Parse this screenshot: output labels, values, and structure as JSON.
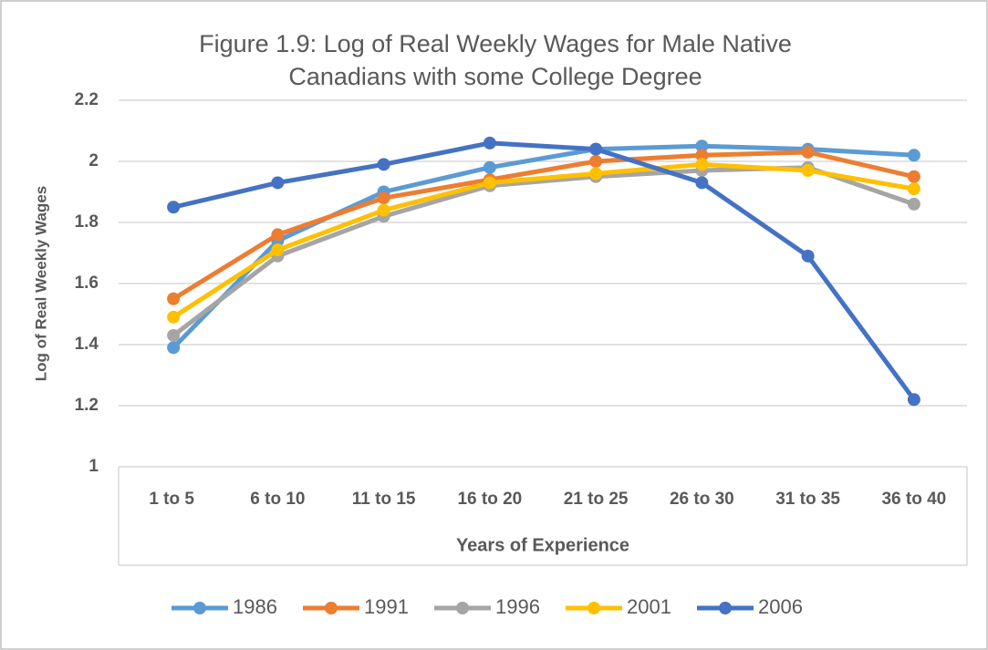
{
  "chart_data": {
    "type": "line",
    "title": "Figure 1.9: Log of Real Weekly Wages for Male Native Canadians with some College Degree",
    "x_label": "Years of Experience",
    "y_label": "Log of Real Weekly Wages",
    "categories": [
      "1 to 5",
      "6 to 10",
      "11 to 15",
      "16 to 20",
      "21 to 25",
      "26 to 30",
      "31 to 35",
      "36 to 40"
    ],
    "series": [
      {
        "name": "1986",
        "color": "#5b9bd5",
        "values": [
          1.39,
          1.74,
          1.9,
          1.98,
          2.04,
          2.05,
          2.04,
          2.02
        ]
      },
      {
        "name": "1991",
        "color": "#ed7d31",
        "values": [
          1.55,
          1.76,
          1.88,
          1.94,
          2.0,
          2.02,
          2.03,
          1.95
        ]
      },
      {
        "name": "1996",
        "color": "#a5a5a5",
        "values": [
          1.43,
          1.69,
          1.82,
          1.92,
          1.95,
          1.97,
          1.98,
          1.86
        ]
      },
      {
        "name": "2001",
        "color": "#ffc000",
        "values": [
          1.49,
          1.71,
          1.84,
          1.93,
          1.96,
          1.99,
          1.97,
          1.91
        ]
      },
      {
        "name": "2006",
        "color": "#4472c4",
        "values": [
          1.85,
          1.93,
          1.99,
          2.06,
          2.04,
          1.93,
          1.69,
          1.22
        ]
      }
    ],
    "ylim": [
      1,
      2.2
    ],
    "yticks": [
      1,
      1.2,
      1.4,
      1.6,
      1.8,
      2,
      2.2
    ],
    "grid": true,
    "legend": "bottom"
  }
}
